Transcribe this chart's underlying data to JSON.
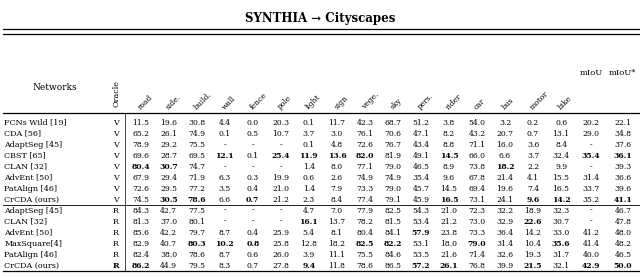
{
  "title": "SYNTHIA → Cityscapes",
  "col_headers": [
    "Networks",
    "Oracle",
    "road",
    "side.",
    "build.",
    "wall",
    "fence",
    "pole",
    "light",
    "sign",
    "vege.",
    "sky",
    "pers.",
    "rider",
    "car",
    "bus",
    "motor",
    "bike",
    "mIoU",
    "mIoU*"
  ],
  "rows": [
    [
      "FCNs Wild [19]",
      "V",
      "11.5",
      "19.6",
      "30.8",
      "4.4",
      "0.0",
      "20.3",
      "0.1",
      "11.7",
      "42.3",
      "68.7",
      "51.2",
      "3.8",
      "54.0",
      "3.2",
      "0.2",
      "0.6",
      "20.2",
      "22.1"
    ],
    [
      "CDA [56]",
      "V",
      "65.2",
      "26.1",
      "74.9",
      "0.1",
      "0.5",
      "10.7",
      "3.7",
      "3.0",
      "76.1",
      "70.6",
      "47.1",
      "8.2",
      "43.2",
      "20.7",
      "0.7",
      "13.1",
      "29.0",
      "34.8"
    ],
    [
      "AdaptSeg [45]",
      "V",
      "78.9",
      "29.2",
      "75.5",
      "-",
      "-",
      "-",
      "0.1",
      "4.8",
      "72.6",
      "76.7",
      "43.4",
      "8.8",
      "71.1",
      "16.0",
      "3.6",
      "8.4",
      "-",
      "37.6"
    ],
    [
      "CBST [65]",
      "V",
      "69.6",
      "28.7",
      "69.5",
      "12.1",
      "0.1",
      "25.4",
      "11.9",
      "13.6",
      "82.0",
      "81.9",
      "49.1",
      "14.5",
      "66.0",
      "6.6",
      "3.7",
      "32.4",
      "35.4",
      "36.1"
    ],
    [
      "CLAN [32]",
      "V",
      "80.4",
      "30.7",
      "74.7",
      "-",
      "-",
      "-",
      "1.4",
      "8.0",
      "77.1",
      "79.0",
      "46.5",
      "8.9",
      "73.8",
      "18.2",
      "2.2",
      "9.9",
      "-",
      "39.3"
    ],
    [
      "AdvEnt [50]",
      "V",
      "67.9",
      "29.4",
      "71.9",
      "6.3",
      "0.3",
      "19.9",
      "0.6",
      "2.6",
      "74.9",
      "74.9",
      "35.4",
      "9.6",
      "67.8",
      "21.4",
      "4.1",
      "15.5",
      "31.4",
      "36.6"
    ],
    [
      "PatAlign [46]",
      "V",
      "72.6",
      "29.5",
      "77.2",
      "3.5",
      "0.4",
      "21.0",
      "1.4",
      "7.9",
      "73.3",
      "79.0",
      "45.7",
      "14.5",
      "69.4",
      "19.6",
      "7.4",
      "16.5",
      "33.7",
      "39.6"
    ],
    [
      "CrCDA (ours)",
      "V",
      "74.5",
      "30.5",
      "78.6",
      "6.6",
      "0.7",
      "21.2",
      "2.3",
      "8.4",
      "77.4",
      "79.1",
      "45.9",
      "16.5",
      "73.1",
      "24.1",
      "9.6",
      "14.2",
      "35.2",
      "41.1"
    ],
    [
      "AdaptSeg [45]",
      "R",
      "84.3",
      "42.7",
      "77.5",
      "-",
      "-",
      "-",
      "4.7",
      "7.0",
      "77.9",
      "82.5",
      "54.3",
      "21.0",
      "72.3",
      "32.2",
      "18.9",
      "32.3",
      "-",
      "46.7"
    ],
    [
      "CLAN [32]",
      "R",
      "81.3",
      "37.0",
      "80.1",
      "-",
      "-",
      "-",
      "16.1",
      "13.7",
      "78.2",
      "81.5",
      "53.4",
      "21.2",
      "73.0",
      "32.9",
      "22.6",
      "30.7",
      "-",
      "47.8"
    ],
    [
      "AdvEnt [50]",
      "R",
      "85.6",
      "42.2",
      "79.7",
      "8.7",
      "0.4",
      "25.9",
      "5.4",
      "8.1",
      "80.4",
      "84.1",
      "57.9",
      "23.8",
      "73.3",
      "36.4",
      "14.2",
      "33.0",
      "41.2",
      "48.0"
    ],
    [
      "MaxSquare[4]",
      "R",
      "82.9",
      "40.7",
      "80.3",
      "10.2",
      "0.8",
      "25.8",
      "12.8",
      "18.2",
      "82.5",
      "82.2",
      "53.1",
      "18.0",
      "79.0",
      "31.4",
      "10.4",
      "35.6",
      "41.4",
      "48.2"
    ],
    [
      "PatAlign [46]",
      "R",
      "82.4",
      "38.0",
      "78.6",
      "8.7",
      "0.6",
      "26.0",
      "3.9",
      "11.1",
      "75.5",
      "84.6",
      "53.5",
      "21.6",
      "71.4",
      "32.6",
      "19.3",
      "31.7",
      "40.0",
      "46.5"
    ],
    [
      "CrCDA (ours)",
      "R",
      "86.2",
      "44.9",
      "79.5",
      "8.3",
      "0.7",
      "27.8",
      "9.4",
      "11.8",
      "78.6",
      "86.5",
      "57.2",
      "26.1",
      "76.8",
      "39.9",
      "21.5",
      "32.1",
      "42.9",
      "50.0"
    ]
  ],
  "bold_map": [
    [
      false,
      false,
      false,
      false,
      false,
      false,
      false,
      false,
      false,
      false,
      false,
      false,
      false,
      false,
      false,
      false,
      false,
      false,
      false,
      false
    ],
    [
      false,
      false,
      false,
      false,
      false,
      false,
      false,
      false,
      false,
      false,
      false,
      false,
      false,
      false,
      false,
      false,
      false,
      false,
      false,
      false
    ],
    [
      false,
      false,
      false,
      false,
      false,
      false,
      false,
      false,
      false,
      false,
      false,
      false,
      false,
      false,
      false,
      false,
      false,
      false,
      false,
      false
    ],
    [
      false,
      false,
      false,
      false,
      false,
      true,
      false,
      true,
      true,
      true,
      true,
      false,
      false,
      true,
      false,
      false,
      false,
      false,
      true,
      true
    ],
    [
      false,
      false,
      true,
      true,
      false,
      false,
      false,
      false,
      false,
      false,
      false,
      false,
      false,
      false,
      false,
      true,
      false,
      false,
      false,
      false
    ],
    [
      false,
      false,
      false,
      false,
      false,
      false,
      false,
      false,
      false,
      false,
      false,
      false,
      false,
      false,
      false,
      false,
      false,
      false,
      false,
      false
    ],
    [
      false,
      false,
      false,
      false,
      false,
      false,
      false,
      false,
      false,
      false,
      false,
      false,
      false,
      false,
      false,
      false,
      false,
      false,
      false,
      false
    ],
    [
      false,
      false,
      false,
      true,
      true,
      false,
      true,
      false,
      false,
      false,
      false,
      false,
      false,
      true,
      false,
      false,
      true,
      true,
      false,
      true
    ],
    [
      false,
      false,
      false,
      false,
      false,
      false,
      false,
      false,
      false,
      false,
      false,
      false,
      false,
      false,
      false,
      false,
      false,
      false,
      false,
      false
    ],
    [
      false,
      false,
      false,
      false,
      false,
      false,
      false,
      false,
      true,
      false,
      false,
      false,
      false,
      false,
      false,
      false,
      true,
      false,
      false,
      false
    ],
    [
      false,
      false,
      false,
      false,
      false,
      false,
      false,
      false,
      false,
      false,
      false,
      false,
      true,
      false,
      false,
      false,
      false,
      false,
      false,
      false
    ],
    [
      false,
      false,
      false,
      false,
      true,
      true,
      true,
      false,
      false,
      false,
      true,
      true,
      false,
      false,
      true,
      false,
      false,
      true,
      false,
      false
    ],
    [
      false,
      false,
      false,
      false,
      false,
      false,
      false,
      false,
      false,
      false,
      false,
      false,
      false,
      false,
      false,
      false,
      false,
      false,
      false,
      false
    ],
    [
      false,
      true,
      true,
      false,
      false,
      false,
      false,
      false,
      true,
      false,
      false,
      false,
      true,
      true,
      false,
      false,
      true,
      false,
      true,
      true
    ]
  ],
  "separator_after_row": 7,
  "bg_color": "#ffffff"
}
